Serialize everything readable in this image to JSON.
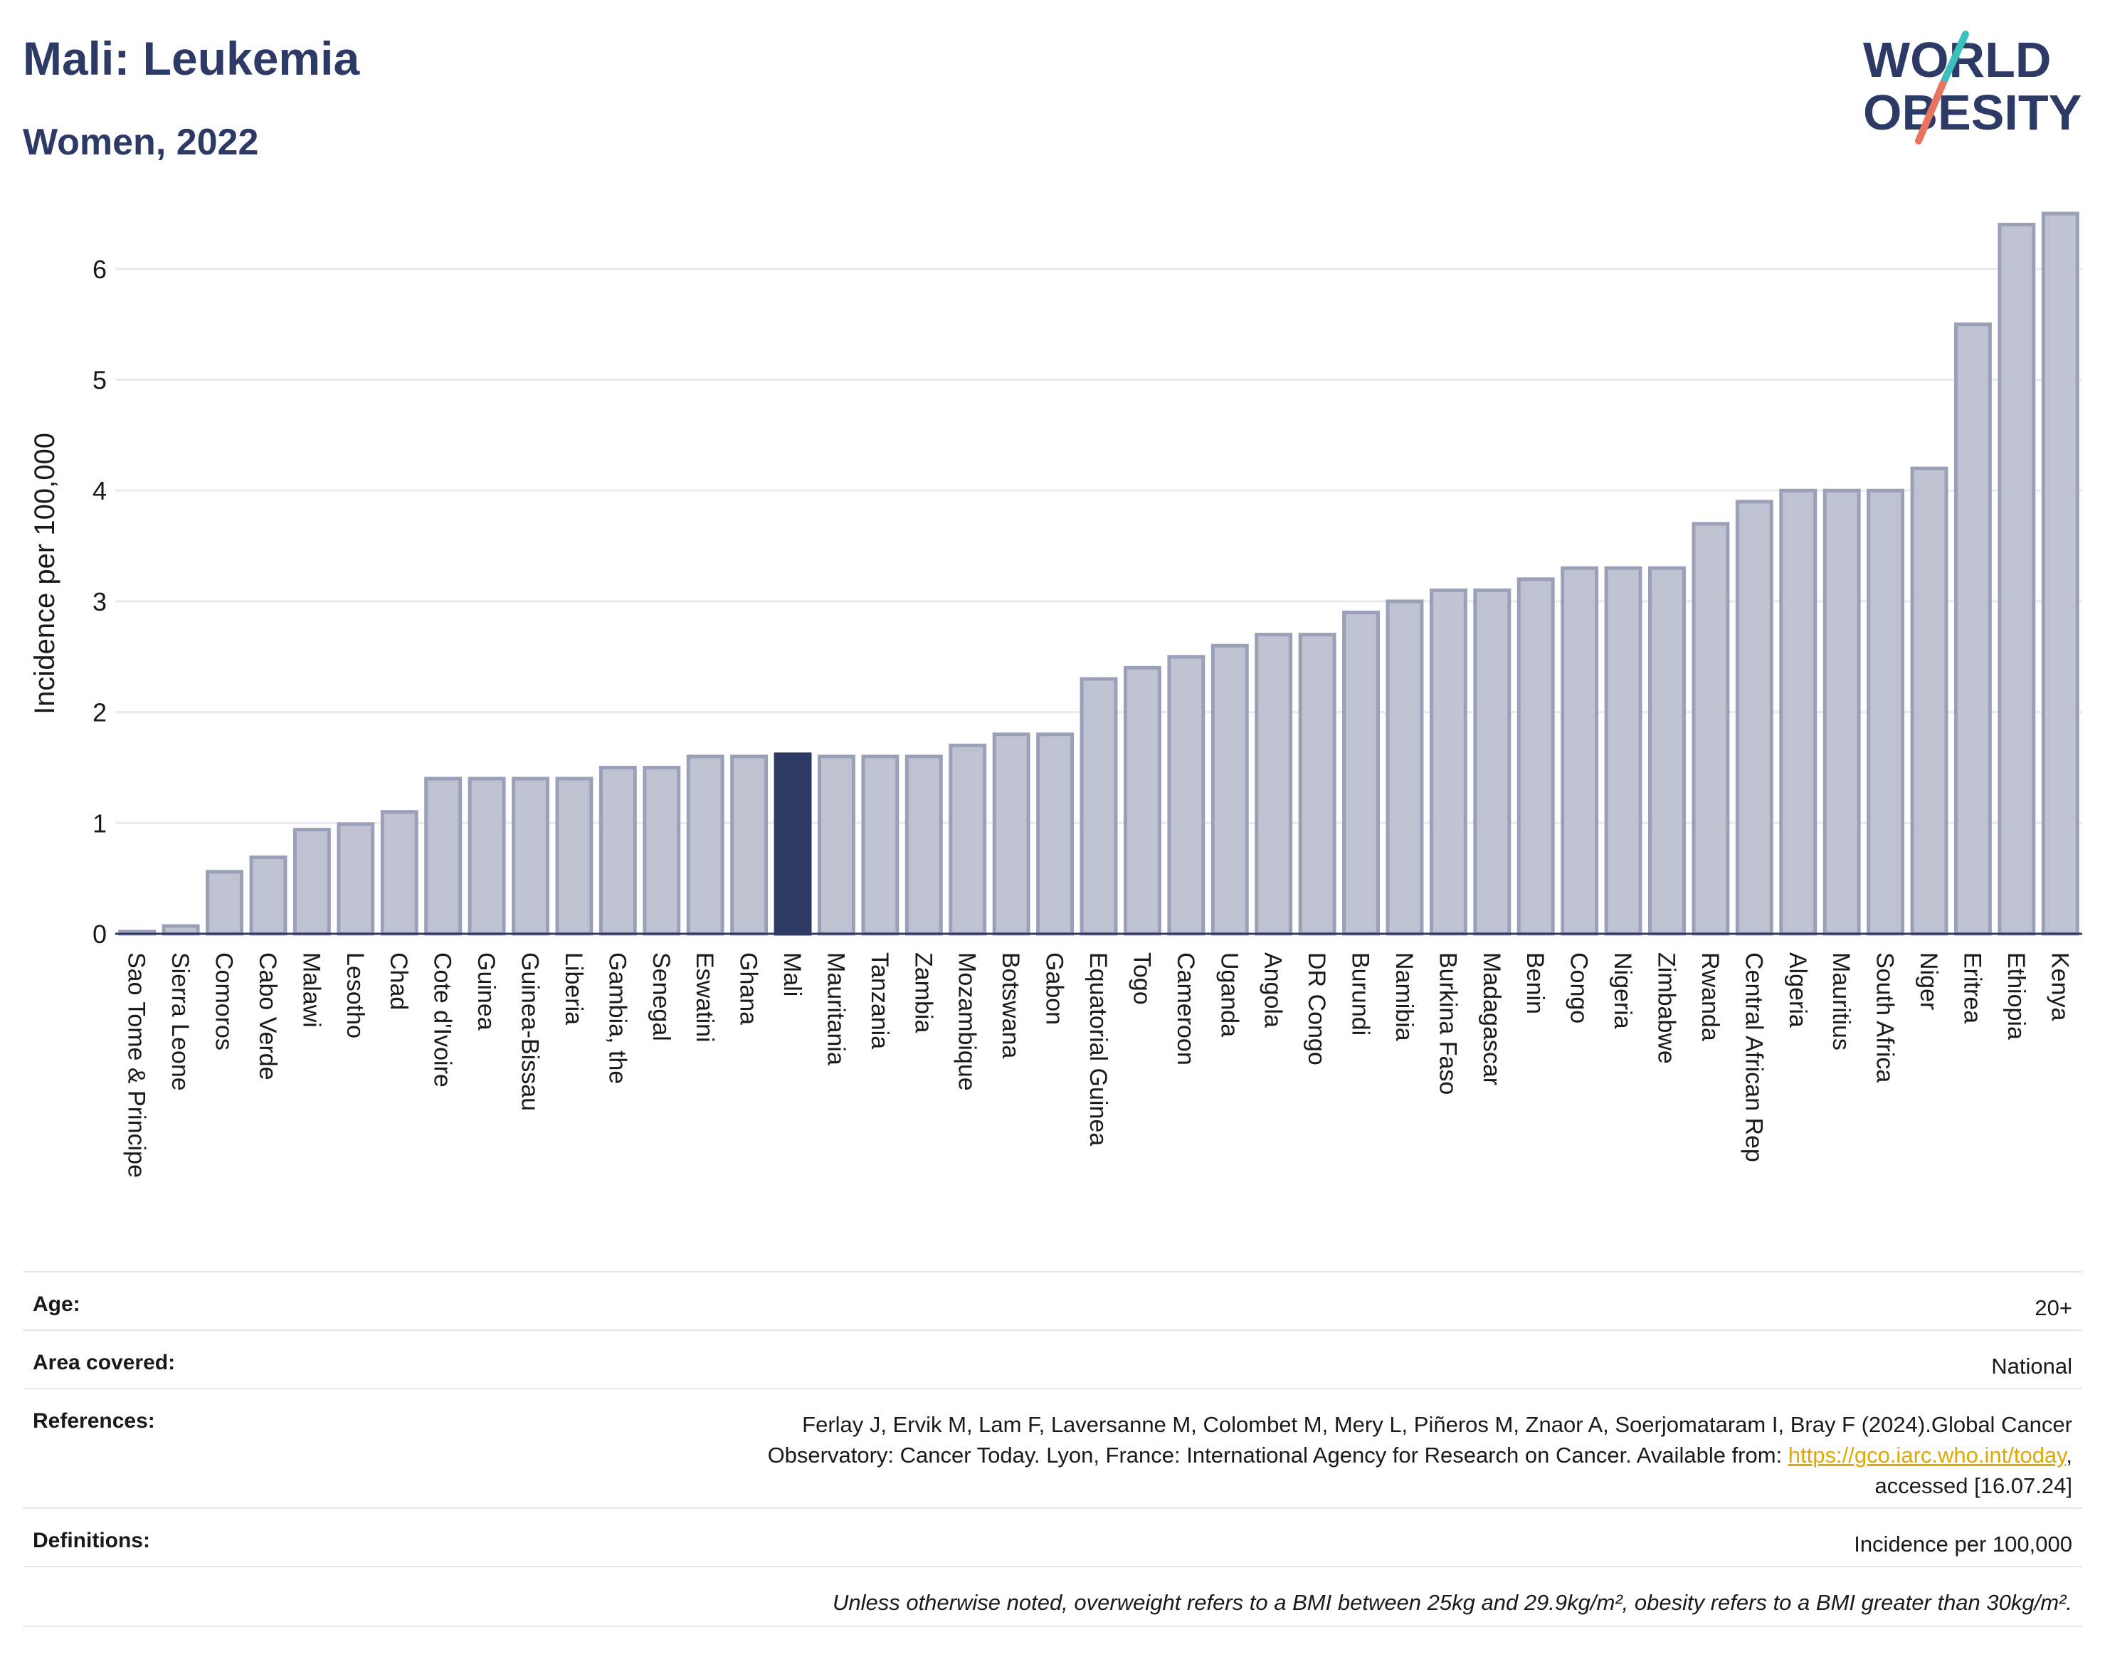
{
  "header": {
    "title": "Mali: Leukemia",
    "subtitle": "Women, 2022",
    "logo_line1": "WORLD",
    "logo_line2": "OBESITY"
  },
  "colors": {
    "title": "#2d3a66",
    "bar": "#bfc3d1",
    "bar_outline": "#9aa0b8",
    "highlight": "#2d3a66",
    "grid": "#e8eaef",
    "logo_teal": "#3cc0bf",
    "logo_coral": "#e8735e",
    "link": "#e0a800"
  },
  "chart_data": {
    "type": "bar",
    "ylabel": "Incidence per 100,000",
    "ylim": [
      0,
      6.5
    ],
    "yticks": [
      0,
      1,
      2,
      3,
      4,
      5,
      6
    ],
    "grid": true,
    "highlight": "Mali",
    "categories": [
      "Sao Tome & Principe",
      "Sierra Leone",
      "Comoros",
      "Cabo Verde",
      "Malawi",
      "Lesotho",
      "Chad",
      "Cote d'Ivoire",
      "Guinea",
      "Guinea-Bissau",
      "Liberia",
      "Gambia, the",
      "Senegal",
      "Eswatini",
      "Ghana",
      "Mali",
      "Mauritania",
      "Tanzania",
      "Zambia",
      "Mozambique",
      "Botswana",
      "Gabon",
      "Equatorial Guinea",
      "Togo",
      "Cameroon",
      "Uganda",
      "Angola",
      "DR Congo",
      "Burundi",
      "Namibia",
      "Burkina Faso",
      "Madagascar",
      "Benin",
      "Congo",
      "Nigeria",
      "Zimbabwe",
      "Rwanda",
      "Central African Rep",
      "Algeria",
      "Mauritius",
      "South Africa",
      "Niger",
      "Eritrea",
      "Ethiopia",
      "Kenya"
    ],
    "values": [
      0.02,
      0.07,
      0.56,
      0.69,
      0.94,
      0.99,
      1.1,
      1.4,
      1.4,
      1.4,
      1.4,
      1.5,
      1.5,
      1.6,
      1.6,
      1.62,
      1.6,
      1.6,
      1.6,
      1.7,
      1.8,
      1.8,
      2.3,
      2.4,
      2.5,
      2.6,
      2.7,
      2.7,
      2.9,
      3.0,
      3.1,
      3.1,
      3.2,
      3.3,
      3.3,
      3.3,
      3.7,
      3.9,
      4.0,
      4.0,
      4.0,
      4.2,
      5.5,
      6.4,
      6.5
    ]
  },
  "info": {
    "age_label": "Age:",
    "age_value": "20+",
    "area_label": "Area covered:",
    "area_value": "National",
    "references_label": "References:",
    "references_line1": "Ferlay J, Ervik M, Lam F, Laversanne M, Colombet M, Mery L, Piñeros M, Znaor A, Soerjomataram I, Bray F (2024).Global Cancer",
    "references_line2_prefix": "Observatory: Cancer Today. Lyon, France: International Agency for Research on Cancer. Available from: ",
    "references_link": "https://gco.iarc.who.int/today",
    "references_line2_suffix": ",",
    "references_line3": "accessed [16.07.24]",
    "definitions_label": "Definitions:",
    "definitions_value": "Incidence per 100,000",
    "note": "Unless otherwise noted, overweight refers to a BMI between 25kg and 29.9kg/m², obesity refers to a BMI greater than 30kg/m²."
  }
}
